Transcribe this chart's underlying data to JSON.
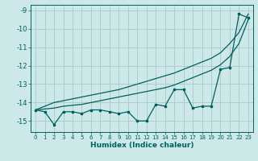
{
  "xlabel": "Humidex (Indice chaleur)",
  "bg_color": "#cce8e8",
  "grid_color": "#b0cccc",
  "line_color": "#006060",
  "xlim": [
    -0.5,
    23.5
  ],
  "ylim": [
    -15.6,
    -8.7
  ],
  "yticks": [
    -15,
    -14,
    -13,
    -12,
    -11,
    -10,
    -9
  ],
  "xticks": [
    0,
    1,
    2,
    3,
    4,
    5,
    6,
    7,
    8,
    9,
    10,
    11,
    12,
    13,
    14,
    15,
    16,
    17,
    18,
    19,
    20,
    21,
    22,
    23
  ],
  "x": [
    0,
    1,
    2,
    3,
    4,
    5,
    6,
    7,
    8,
    9,
    10,
    11,
    12,
    13,
    14,
    15,
    16,
    17,
    18,
    19,
    20,
    21,
    22,
    23
  ],
  "y_jagged": [
    -14.4,
    -14.5,
    -15.2,
    -14.5,
    -14.5,
    -14.6,
    -14.4,
    -14.4,
    -14.5,
    -14.6,
    -14.5,
    -15.0,
    -15.0,
    -14.1,
    -14.2,
    -13.3,
    -13.3,
    -14.3,
    -14.2,
    -14.2,
    -12.2,
    -12.1,
    -9.2,
    -9.4
  ],
  "y_line1": [
    -14.4,
    -14.2,
    -14.0,
    -13.9,
    -13.8,
    -13.7,
    -13.6,
    -13.5,
    -13.4,
    -13.3,
    -13.15,
    -13.0,
    -12.85,
    -12.7,
    -12.55,
    -12.4,
    -12.2,
    -12.0,
    -11.8,
    -11.6,
    -11.3,
    -10.8,
    -10.2,
    -9.2
  ],
  "y_line2": [
    -14.4,
    -14.35,
    -14.3,
    -14.2,
    -14.15,
    -14.1,
    -14.0,
    -13.9,
    -13.8,
    -13.7,
    -13.6,
    -13.5,
    -13.4,
    -13.3,
    -13.2,
    -13.05,
    -12.85,
    -12.65,
    -12.45,
    -12.25,
    -11.95,
    -11.5,
    -10.8,
    -9.5
  ]
}
